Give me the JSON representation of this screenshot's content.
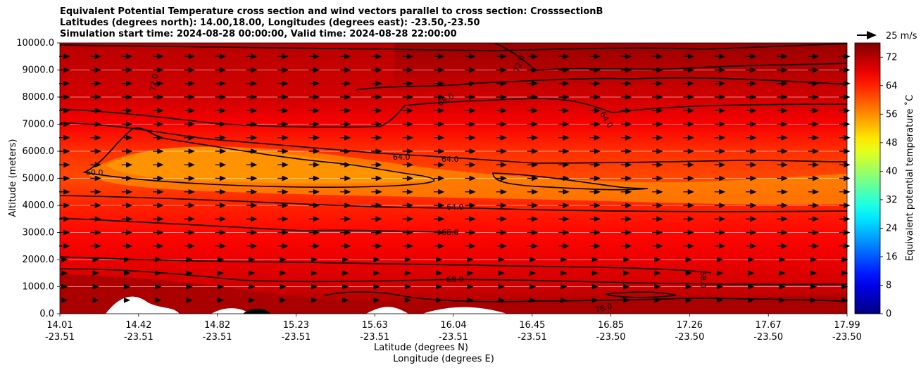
{
  "title_lines": [
    "Equivalent Potential Temperature cross section and wind vectors parallel to cross section: CrosssectionB",
    "Latitudes (degrees north): 14.00,18.00, Longitudes (degrees east): -23.50,-23.50",
    "Simulation start time: 2024-08-28 00:00:00, Valid time: 2024-08-28 22:00:00"
  ],
  "chart_data": {
    "type": "heatmap",
    "title": "Equivalent Potential Temperature cross section and wind vectors parallel to cross section: CrosssectionB",
    "ylabel": "Altitude (meters)",
    "xlabel_lines": [
      "Latitude (degrees N)",
      "Longitude (degrees E)"
    ],
    "ylim": [
      0,
      10000
    ],
    "y_ticks": [
      "0.0",
      "1000.0",
      "2000.0",
      "3000.0",
      "4000.0",
      "5000.0",
      "6000.0",
      "7000.0",
      "8000.0",
      "9000.0",
      "10000.0"
    ],
    "x_ticks": [
      {
        "lat": "14.01",
        "lon": "-23.51"
      },
      {
        "lat": "14.42",
        "lon": "-23.51"
      },
      {
        "lat": "14.82",
        "lon": "-23.51"
      },
      {
        "lat": "15.23",
        "lon": "-23.51"
      },
      {
        "lat": "15.63",
        "lon": "-23.51"
      },
      {
        "lat": "16.04",
        "lon": "-23.51"
      },
      {
        "lat": "16.45",
        "lon": "-23.51"
      },
      {
        "lat": "16.85",
        "lon": "-23.50"
      },
      {
        "lat": "17.26",
        "lon": "-23.50"
      },
      {
        "lat": "17.67",
        "lon": "-23.50"
      },
      {
        "lat": "17.99",
        "lon": "-23.50"
      }
    ],
    "grid": "horizontal",
    "colorbar": {
      "label": "Equivalent potential temperature ˚C",
      "ticks": [
        "0",
        "8",
        "16",
        "24",
        "32",
        "40",
        "48",
        "56",
        "64",
        "72"
      ],
      "range": [
        0,
        76
      ],
      "colormap": "jet"
    },
    "contour_labels": [
      "60.0",
      "64.0",
      "64.0",
      "64.0",
      "64.0",
      "68.0",
      "68.0",
      "68.0",
      "68.0",
      "72.0",
      "72.0",
      "76.0"
    ],
    "wind_vector_key": "25 m/s",
    "field_profile": [
      {
        "altitude": 0,
        "value": 74
      },
      {
        "altitude": 500,
        "value": 72
      },
      {
        "altitude": 1000,
        "value": 70
      },
      {
        "altitude": 1500,
        "value": 69
      },
      {
        "altitude": 2000,
        "value": 68
      },
      {
        "altitude": 3000,
        "value": 66
      },
      {
        "altitude": 4000,
        "value": 64
      },
      {
        "altitude": 5000,
        "value": 61
      },
      {
        "altitude": 6000,
        "value": 63
      },
      {
        "altitude": 7000,
        "value": 67
      },
      {
        "altitude": 8000,
        "value": 70
      },
      {
        "altitude": 9000,
        "value": 72
      },
      {
        "altitude": 10000,
        "value": 74
      }
    ]
  }
}
